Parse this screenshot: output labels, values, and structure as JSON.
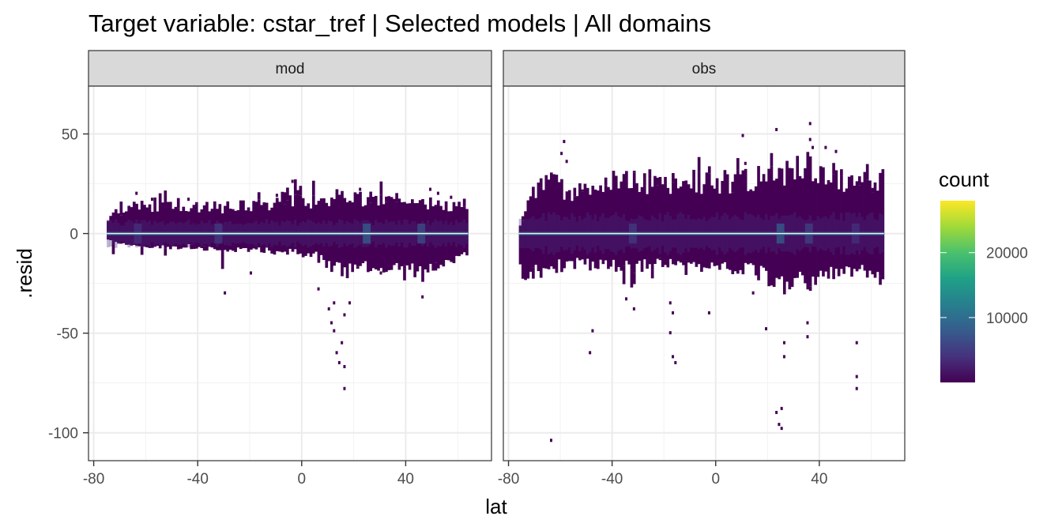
{
  "chart_data": {
    "type": "heatmap",
    "title": "Target variable: cstar_tref | Selected models | All domains",
    "xlabel": "lat",
    "ylabel": ".resid",
    "xlim": [
      -82,
      73
    ],
    "ylim": [
      -114,
      74
    ],
    "x_ticks": [
      -80,
      -40,
      0,
      40
    ],
    "x_tick_labels": [
      "-80",
      "-40",
      "0",
      "40"
    ],
    "y_ticks": [
      50,
      0,
      -50,
      -100
    ],
    "y_tick_labels": [
      "50",
      "0",
      "-50",
      "-100"
    ],
    "grid": true,
    "legend": {
      "title": "count",
      "position": "right",
      "range": [
        0,
        28000
      ],
      "ticks": [
        10000,
        20000
      ],
      "tick_labels": [
        "10000",
        "20000"
      ],
      "palette": [
        "#440154",
        "#46327e",
        "#365c8d",
        "#277f8e",
        "#1fa187",
        "#4ac16d",
        "#a0da39",
        "#fde725"
      ]
    },
    "panels": [
      {
        "name": "mod",
        "band": {
          "x_start": -75,
          "x_end": 64,
          "lower_core": -8,
          "upper_core": 8
        },
        "envelope": [
          {
            "x": -75,
            "lo": -4,
            "hi": 9
          },
          {
            "x": -70,
            "lo": -5,
            "hi": 12
          },
          {
            "x": -64,
            "lo": -6,
            "hi": 16
          },
          {
            "x": -55,
            "lo": -7,
            "hi": 14
          },
          {
            "x": -45,
            "lo": -7,
            "hi": 15
          },
          {
            "x": -35,
            "lo": -8,
            "hi": 14
          },
          {
            "x": -25,
            "lo": -9,
            "hi": 15
          },
          {
            "x": -15,
            "lo": -9,
            "hi": 16
          },
          {
            "x": -5,
            "lo": -10,
            "hi": 17
          },
          {
            "x": 5,
            "lo": -12,
            "hi": 18
          },
          {
            "x": 15,
            "lo": -20,
            "hi": 20
          },
          {
            "x": 25,
            "lo": -18,
            "hi": 18
          },
          {
            "x": 35,
            "lo": -17,
            "hi": 16
          },
          {
            "x": 45,
            "lo": -20,
            "hi": 17
          },
          {
            "x": 55,
            "lo": -14,
            "hi": 15
          },
          {
            "x": 64,
            "lo": -12,
            "hi": 13
          }
        ],
        "hot_spots": [
          {
            "x": -63,
            "count": 4000
          },
          {
            "x": -32,
            "count": 5000
          },
          {
            "x": 25,
            "count": 9000
          },
          {
            "x": 46,
            "count": 7000
          }
        ],
        "outliers": [
          {
            "x": -64,
            "y": 20
          },
          {
            "x": -58,
            "y": 17
          },
          {
            "x": -44,
            "y": 17
          },
          {
            "x": -30,
            "y": -30
          },
          {
            "x": -20,
            "y": -20
          },
          {
            "x": -10,
            "y": 19
          },
          {
            "x": -3,
            "y": 23
          },
          {
            "x": -4,
            "y": 26
          },
          {
            "x": 6,
            "y": -28
          },
          {
            "x": 10,
            "y": -38
          },
          {
            "x": 11,
            "y": -45
          },
          {
            "x": 12,
            "y": -35
          },
          {
            "x": 12,
            "y": -49
          },
          {
            "x": 13,
            "y": -60
          },
          {
            "x": 14,
            "y": -65
          },
          {
            "x": 15,
            "y": -55
          },
          {
            "x": 16,
            "y": -67
          },
          {
            "x": 16,
            "y": -78
          },
          {
            "x": 16,
            "y": -41
          },
          {
            "x": 18,
            "y": -35
          },
          {
            "x": 22,
            "y": 22
          },
          {
            "x": 30,
            "y": -20
          },
          {
            "x": 46,
            "y": -32
          },
          {
            "x": 49,
            "y": 22
          },
          {
            "x": 52,
            "y": 20
          },
          {
            "x": 57,
            "y": 18
          }
        ]
      },
      {
        "name": "obs",
        "band": {
          "x_start": -76,
          "x_end": 65,
          "lower_core": -10,
          "upper_core": 12
        },
        "envelope": [
          {
            "x": -76,
            "lo": -20,
            "hi": 4
          },
          {
            "x": -72,
            "lo": -22,
            "hi": 20
          },
          {
            "x": -66,
            "lo": -18,
            "hi": 28
          },
          {
            "x": -55,
            "lo": -16,
            "hi": 22
          },
          {
            "x": -45,
            "lo": -17,
            "hi": 26
          },
          {
            "x": -35,
            "lo": -18,
            "hi": 30
          },
          {
            "x": -25,
            "lo": -16,
            "hi": 26
          },
          {
            "x": -15,
            "lo": -17,
            "hi": 28
          },
          {
            "x": -5,
            "lo": -18,
            "hi": 27
          },
          {
            "x": 5,
            "lo": -19,
            "hi": 28
          },
          {
            "x": 15,
            "lo": -20,
            "hi": 30
          },
          {
            "x": 25,
            "lo": -28,
            "hi": 34
          },
          {
            "x": 35,
            "lo": -24,
            "hi": 36
          },
          {
            "x": 45,
            "lo": -22,
            "hi": 31
          },
          {
            "x": 55,
            "lo": -20,
            "hi": 28
          },
          {
            "x": 65,
            "lo": -20,
            "hi": 27
          }
        ],
        "hot_spots": [
          {
            "x": -32,
            "count": 5000
          },
          {
            "x": 25,
            "count": 9000
          },
          {
            "x": 36,
            "count": 6000
          },
          {
            "x": 54,
            "count": 4000
          }
        ],
        "outliers": [
          {
            "x": -64,
            "y": -104
          },
          {
            "x": -59,
            "y": 46
          },
          {
            "x": -58,
            "y": 36
          },
          {
            "x": -60,
            "y": 40
          },
          {
            "x": -48,
            "y": -49
          },
          {
            "x": -49,
            "y": -60
          },
          {
            "x": -35,
            "y": -33
          },
          {
            "x": -32,
            "y": -38
          },
          {
            "x": -18,
            "y": -35
          },
          {
            "x": -17,
            "y": -40
          },
          {
            "x": -18,
            "y": -50
          },
          {
            "x": -17,
            "y": -62
          },
          {
            "x": -16,
            "y": -65
          },
          {
            "x": -3,
            "y": -40
          },
          {
            "x": 10,
            "y": 49
          },
          {
            "x": 11,
            "y": 35
          },
          {
            "x": 14,
            "y": -30
          },
          {
            "x": 19,
            "y": -48
          },
          {
            "x": 23,
            "y": 52
          },
          {
            "x": 23,
            "y": -90
          },
          {
            "x": 24,
            "y": -96
          },
          {
            "x": 25,
            "y": -88
          },
          {
            "x": 25,
            "y": -98
          },
          {
            "x": 26,
            "y": -55
          },
          {
            "x": 26,
            "y": -62
          },
          {
            "x": 36,
            "y": 55
          },
          {
            "x": 36,
            "y": 47
          },
          {
            "x": 37,
            "y": 43
          },
          {
            "x": 35,
            "y": -45
          },
          {
            "x": 35,
            "y": -52
          },
          {
            "x": 42,
            "y": 43
          },
          {
            "x": 46,
            "y": 41
          },
          {
            "x": 54,
            "y": -55
          },
          {
            "x": 54,
            "y": -72
          },
          {
            "x": 54,
            "y": -78
          }
        ]
      }
    ]
  }
}
